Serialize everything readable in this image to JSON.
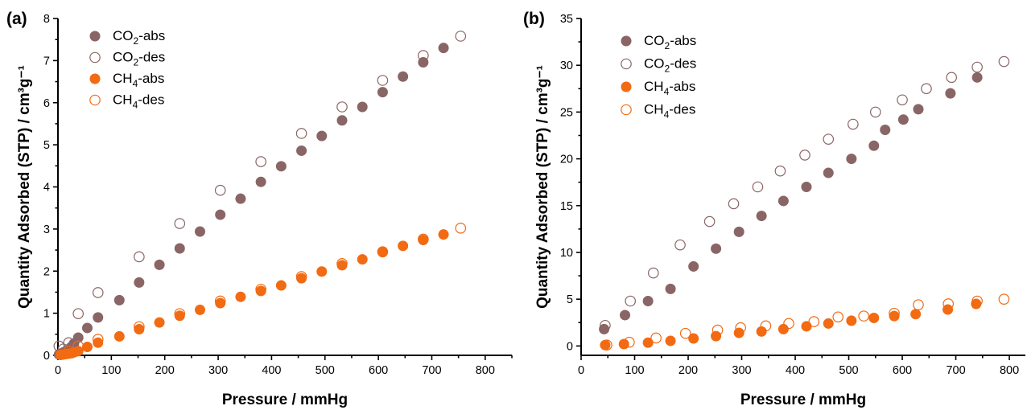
{
  "colors": {
    "co2": "#8a6565",
    "ch4": "#f26a12"
  },
  "chart_data": [
    {
      "type": "scatter",
      "panel_label": "(a)",
      "xlabel": "Pressure / mmHg",
      "ylabel": "Quantity Adsorbed (STP) / cm³g⁻¹",
      "xlim": [
        0,
        850
      ],
      "ylim": [
        0,
        8
      ],
      "xticks": [
        0,
        100,
        200,
        300,
        400,
        500,
        600,
        700,
        800
      ],
      "yticks": [
        0,
        1,
        2,
        3,
        4,
        5,
        6,
        7,
        8
      ],
      "legend_position": "top-left",
      "series": [
        {
          "name": "CO2-abs",
          "label_main": "CO",
          "label_sub": "2",
          "label_rest": "-abs",
          "color_key": "co2",
          "filled": true,
          "x": [
            2,
            5,
            10,
            15,
            20,
            25,
            30,
            38,
            55,
            75,
            115,
            152,
            190,
            228,
            266,
            304,
            342,
            380,
            418,
            456,
            494,
            532,
            570,
            608,
            646,
            684,
            722
          ],
          "y": [
            0.02,
            0.04,
            0.07,
            0.1,
            0.14,
            0.2,
            0.28,
            0.42,
            0.65,
            0.9,
            1.31,
            1.73,
            2.15,
            2.54,
            2.94,
            3.34,
            3.72,
            4.12,
            4.49,
            4.86,
            5.21,
            5.58,
            5.9,
            6.25,
            6.62,
            6.96,
            7.3
          ]
        },
        {
          "name": "CO2-des",
          "label_main": "CO",
          "label_sub": "2",
          "label_rest": "-des",
          "color_key": "co2",
          "filled": false,
          "x": [
            2,
            10,
            20,
            38,
            75,
            152,
            228,
            304,
            380,
            456,
            532,
            608,
            684,
            754
          ],
          "y": [
            0.22,
            0.15,
            0.3,
            0.99,
            1.49,
            2.34,
            3.13,
            3.92,
            4.6,
            5.27,
            5.9,
            6.53,
            7.12,
            7.58
          ]
        },
        {
          "name": "CH4-abs",
          "label_main": "CH",
          "label_sub": "4",
          "label_rest": "-abs",
          "color_key": "ch4",
          "filled": true,
          "x": [
            5,
            10,
            15,
            20,
            25,
            30,
            38,
            55,
            75,
            115,
            152,
            190,
            228,
            266,
            304,
            342,
            380,
            418,
            456,
            494,
            532,
            570,
            608,
            646,
            684,
            722
          ],
          "y": [
            0.01,
            0.02,
            0.03,
            0.04,
            0.05,
            0.07,
            0.1,
            0.2,
            0.3,
            0.45,
            0.62,
            0.78,
            0.94,
            1.08,
            1.24,
            1.39,
            1.53,
            1.66,
            1.83,
            1.99,
            2.14,
            2.28,
            2.45,
            2.6,
            2.74,
            2.87
          ]
        },
        {
          "name": "CH4-des",
          "label_main": "CH",
          "label_sub": "4",
          "label_rest": "-des",
          "color_key": "ch4",
          "filled": false,
          "x": [
            20,
            38,
            75,
            152,
            228,
            304,
            380,
            456,
            532,
            608,
            684,
            754
          ],
          "y": [
            0.1,
            0.22,
            0.38,
            0.68,
            0.99,
            1.29,
            1.57,
            1.87,
            2.18,
            2.46,
            2.76,
            3.02
          ]
        }
      ]
    },
    {
      "type": "scatter",
      "panel_label": "(b)",
      "xlabel": "Pressure / mmHg",
      "ylabel": "Quantity Adsorbed (STP) / cm³g⁻¹",
      "xlim": [
        0,
        830
      ],
      "ylim": [
        -1,
        35
      ],
      "xticks": [
        0,
        100,
        200,
        300,
        400,
        500,
        600,
        700,
        800
      ],
      "yticks": [
        0,
        5,
        10,
        15,
        20,
        25,
        30,
        35
      ],
      "legend_position": "top-left",
      "series": [
        {
          "name": "CO2-abs",
          "label_main": "CO",
          "label_sub": "2",
          "label_rest": "-abs",
          "color_key": "co2",
          "filled": true,
          "x": [
            43,
            82,
            125,
            167,
            210,
            252,
            295,
            337,
            378,
            421,
            462,
            505,
            547,
            568,
            602,
            630,
            690,
            740
          ],
          "y": [
            1.8,
            3.3,
            4.8,
            6.1,
            8.5,
            10.4,
            12.2,
            13.9,
            15.5,
            17.0,
            18.5,
            20.0,
            21.4,
            23.1,
            24.2,
            25.3,
            27.0,
            28.7
          ]
        },
        {
          "name": "CO2-des",
          "label_main": "CO",
          "label_sub": "2",
          "label_rest": "-des",
          "color_key": "co2",
          "filled": false,
          "x": [
            45,
            92,
            135,
            185,
            240,
            285,
            330,
            372,
            418,
            462,
            508,
            550,
            600,
            645,
            692,
            740,
            790
          ],
          "y": [
            2.2,
            4.8,
            7.8,
            10.8,
            13.3,
            15.2,
            17.0,
            18.7,
            20.4,
            22.1,
            23.7,
            25.0,
            26.3,
            27.5,
            28.7,
            29.8,
            30.4
          ]
        },
        {
          "name": "CH4-abs",
          "label_main": "CH",
          "label_sub": "4",
          "label_rest": "-abs",
          "color_key": "ch4",
          "filled": true,
          "x": [
            45,
            80,
            125,
            167,
            210,
            252,
            295,
            337,
            378,
            421,
            462,
            505,
            547,
            585,
            625,
            685,
            738
          ],
          "y": [
            0.1,
            0.2,
            0.35,
            0.55,
            0.8,
            1.05,
            1.4,
            1.55,
            1.8,
            2.1,
            2.4,
            2.7,
            3.0,
            3.2,
            3.4,
            3.9,
            4.5
          ]
        },
        {
          "name": "CH4-des",
          "label_main": "CH",
          "label_sub": "4",
          "label_rest": "-des",
          "color_key": "ch4",
          "filled": false,
          "x": [
            48,
            90,
            140,
            195,
            255,
            298,
            345,
            388,
            435,
            480,
            528,
            585,
            630,
            686,
            740,
            790
          ],
          "y": [
            0.1,
            0.4,
            0.85,
            1.35,
            1.7,
            1.95,
            2.15,
            2.4,
            2.6,
            3.1,
            3.2,
            3.5,
            4.4,
            4.5,
            4.8,
            5.0
          ]
        }
      ]
    }
  ]
}
